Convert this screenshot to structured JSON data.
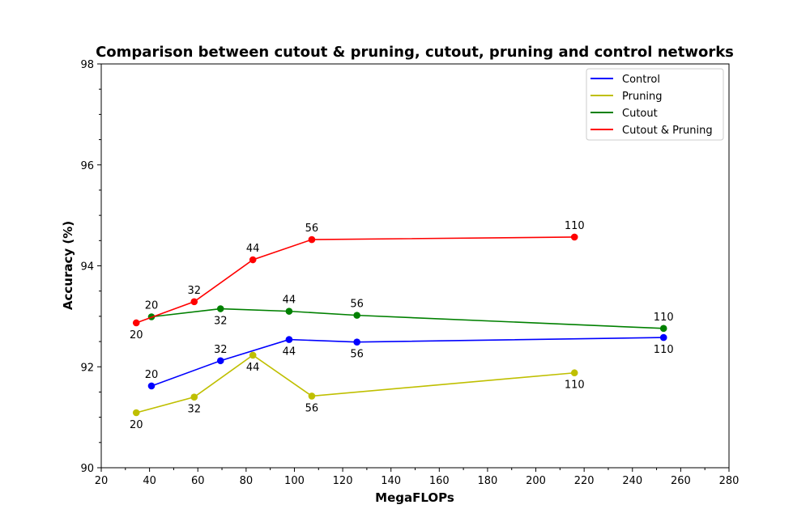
{
  "chart_data": {
    "type": "line",
    "title": "Comparison between cutout & pruning, cutout, pruning and control networks",
    "xlabel": "MegaFLOPs",
    "ylabel": "Accuracy (%)",
    "xlim": [
      20,
      280
    ],
    "ylim": [
      90,
      98
    ],
    "xticks": [
      "20",
      "40",
      "60",
      "80",
      "100",
      "120",
      "140",
      "160",
      "180",
      "200",
      "220",
      "240",
      "260",
      "280"
    ],
    "yticks": [
      "90",
      "92",
      "94",
      "96",
      "98"
    ],
    "legend_position": "top-right",
    "series": [
      {
        "name": "Control",
        "color": "#0000ff",
        "x": [
          40.8,
          69.4,
          97.8,
          125.9,
          252.9
        ],
        "y": [
          91.62,
          92.12,
          92.54,
          92.49,
          92.58
        ],
        "labels": [
          "20",
          "32",
          "44",
          "56",
          "110"
        ],
        "label_pos": [
          "above",
          "above",
          "below",
          "below",
          "below"
        ]
      },
      {
        "name": "Pruning",
        "color": "#bfbf00",
        "x": [
          34.5,
          58.5,
          82.8,
          107.2,
          216.0
        ],
        "y": [
          91.09,
          91.4,
          92.23,
          91.42,
          91.88
        ],
        "labels": [
          "20",
          "32",
          "44",
          "56",
          "110"
        ],
        "label_pos": [
          "below",
          "below",
          "below",
          "below",
          "below"
        ]
      },
      {
        "name": "Cutout",
        "color": "#008000",
        "x": [
          40.8,
          69.4,
          97.8,
          125.9,
          252.9
        ],
        "y": [
          92.99,
          93.15,
          93.1,
          93.02,
          92.76
        ],
        "labels": [
          "20",
          "32",
          "44",
          "56",
          "110"
        ],
        "label_pos": [
          "above",
          "below",
          "above",
          "above",
          "above"
        ]
      },
      {
        "name": "Cutout & Pruning",
        "color": "#ff0000",
        "x": [
          34.5,
          58.5,
          82.8,
          107.2,
          216.0
        ],
        "y": [
          92.87,
          93.29,
          94.12,
          94.52,
          94.57
        ],
        "labels": [
          "20",
          "32",
          "44",
          "56",
          "110"
        ],
        "label_pos": [
          "below",
          "above",
          "above",
          "above",
          "above"
        ]
      }
    ]
  }
}
